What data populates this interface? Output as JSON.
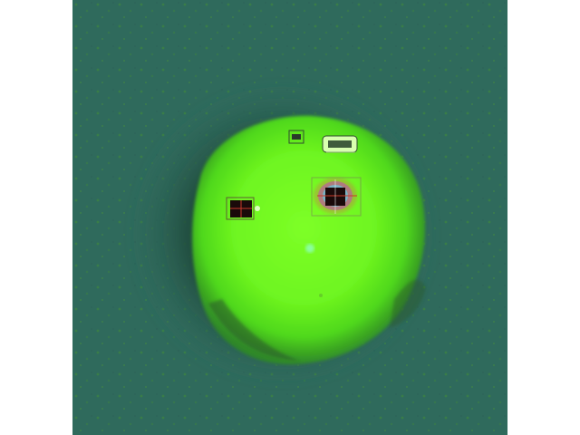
{
  "image": {
    "subject": "fluorescence-micrograph",
    "palette": {
      "background": "#2f6a5c",
      "background_speckle": "#3f8a3a",
      "halo": "#1f4a3c",
      "blob_core": "#77ff22",
      "blob_edge": "#4fd81a",
      "marker_dark": "#1a0a0a",
      "marker_magenta": "#c04cb0",
      "marker_cyan": "#4fe0ff",
      "marker_red": "#c83a2a",
      "marker_white": "#f4f4f4"
    },
    "features": [
      "green-blob",
      "dark-halo",
      "marker-left",
      "marker-right",
      "marker-top-small",
      "marker-top-label",
      "cyan-speck"
    ]
  }
}
